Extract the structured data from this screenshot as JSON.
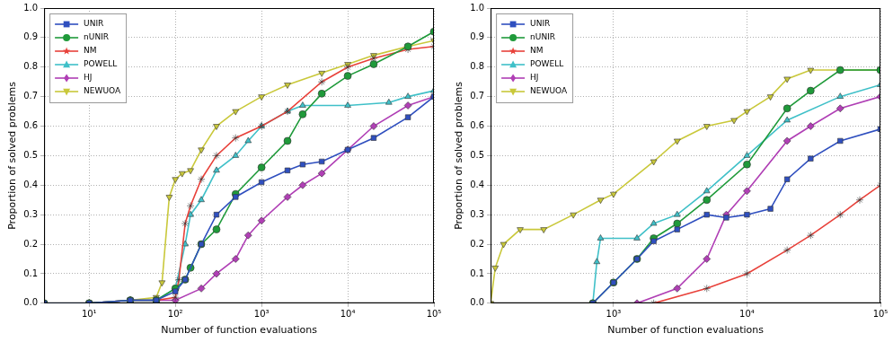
{
  "chart_data": [
    {
      "type": "line",
      "x_label": "Number of function evaluations",
      "y_label": "Proportion of solved problems",
      "log": "x",
      "grid": true,
      "legend": "upper left",
      "xlim": [
        3,
        100000
      ],
      "xticks": [
        {
          "value": 10,
          "label": "10¹"
        },
        {
          "value": 100,
          "label": "10²"
        },
        {
          "value": 1000,
          "label": "10³"
        },
        {
          "value": 10000,
          "label": "10⁴"
        },
        {
          "value": 100000,
          "label": "10⁵"
        }
      ],
      "ylim": [
        0,
        1
      ],
      "yticks": [
        {
          "value": 0,
          "label": "0.0"
        },
        0.1,
        0.2,
        0.3,
        0.4,
        0.5,
        0.6,
        0.7,
        0.8,
        0.9,
        {
          "value": 1,
          "label": "1.0"
        }
      ],
      "series": [
        {
          "name": "UNIR",
          "color": "#2f4fbf",
          "marker": "square",
          "x": [
            3,
            10,
            30,
            60,
            100,
            130,
            200,
            300,
            500,
            1000,
            2000,
            3000,
            5000,
            10000,
            20000,
            50000,
            100000
          ],
          "values": [
            0,
            0,
            0.01,
            0.01,
            0.04,
            0.08,
            0.2,
            0.3,
            0.36,
            0.41,
            0.45,
            0.47,
            0.48,
            0.52,
            0.56,
            0.63,
            0.7
          ]
        },
        {
          "name": "nUNIR",
          "color": "#1f9a3a",
          "marker": "circle",
          "x": [
            3,
            10,
            30,
            60,
            100,
            130,
            150,
            200,
            300,
            500,
            1000,
            2000,
            3000,
            5000,
            10000,
            20000,
            50000,
            100000
          ],
          "values": [
            0,
            0,
            0.01,
            0.01,
            0.05,
            0.08,
            0.12,
            0.2,
            0.25,
            0.37,
            0.46,
            0.55,
            0.64,
            0.71,
            0.77,
            0.81,
            0.87,
            0.92
          ]
        },
        {
          "name": "NM",
          "color": "#e8413a",
          "marker": "star",
          "x": [
            3,
            10,
            30,
            60,
            100,
            110,
            130,
            150,
            200,
            300,
            500,
            1000,
            2000,
            5000,
            10000,
            20000,
            50000,
            100000
          ],
          "values": [
            0,
            0,
            0.01,
            0.01,
            0.02,
            0.08,
            0.27,
            0.33,
            0.42,
            0.5,
            0.56,
            0.6,
            0.65,
            0.75,
            0.8,
            0.83,
            0.86,
            0.87
          ]
        },
        {
          "name": "POWELL",
          "color": "#3fc0c8",
          "marker": "triangle_up",
          "x": [
            3,
            10,
            30,
            60,
            100,
            130,
            150,
            200,
            300,
            500,
            700,
            1000,
            2000,
            3000,
            10000,
            30000,
            50000,
            100000
          ],
          "values": [
            0,
            0,
            0.01,
            0.01,
            0.05,
            0.2,
            0.3,
            0.35,
            0.45,
            0.5,
            0.55,
            0.6,
            0.65,
            0.67,
            0.67,
            0.68,
            0.7,
            0.72
          ]
        },
        {
          "name": "HJ",
          "color": "#b03fb5",
          "marker": "diamond",
          "x": [
            3,
            10,
            30,
            60,
            100,
            200,
            300,
            500,
            700,
            1000,
            2000,
            3000,
            5000,
            10000,
            20000,
            50000,
            100000
          ],
          "values": [
            0,
            0,
            0.01,
            0.01,
            0.01,
            0.05,
            0.1,
            0.15,
            0.23,
            0.28,
            0.36,
            0.4,
            0.44,
            0.52,
            0.6,
            0.67,
            0.7
          ]
        },
        {
          "name": "NEWUOA",
          "color": "#c9c83a",
          "marker": "triangle_down",
          "x": [
            3,
            10,
            30,
            60,
            70,
            85,
            100,
            120,
            150,
            200,
            300,
            500,
            1000,
            2000,
            5000,
            10000,
            20000,
            50000,
            100000
          ],
          "values": [
            0,
            0,
            0.01,
            0.02,
            0.07,
            0.36,
            0.42,
            0.44,
            0.45,
            0.52,
            0.6,
            0.65,
            0.7,
            0.74,
            0.78,
            0.81,
            0.84,
            0.87,
            0.89
          ]
        }
      ]
    },
    {
      "type": "line",
      "x_label": "Number of function evaluations",
      "y_label": "Proportion of solved problems",
      "log": "x",
      "grid": true,
      "legend": "upper left",
      "xlim": [
        120,
        100000
      ],
      "xticks": [
        {
          "value": 1000,
          "label": "10³"
        },
        {
          "value": 10000,
          "label": "10⁴"
        },
        {
          "value": 100000,
          "label": "10⁵"
        }
      ],
      "ylim": [
        0,
        1
      ],
      "yticks": [
        {
          "value": 0,
          "label": "0.0"
        },
        0.1,
        0.2,
        0.3,
        0.4,
        0.5,
        0.6,
        0.7,
        0.8,
        0.9,
        {
          "value": 1,
          "label": "1.0"
        }
      ],
      "series": [
        {
          "name": "UNIR",
          "color": "#2f4fbf",
          "marker": "square",
          "x": [
            700,
            1000,
            1500,
            2000,
            3000,
            5000,
            7000,
            10000,
            15000,
            20000,
            30000,
            50000,
            100000
          ],
          "values": [
            0,
            0.07,
            0.15,
            0.21,
            0.25,
            0.3,
            0.29,
            0.3,
            0.32,
            0.42,
            0.49,
            0.55,
            0.59
          ]
        },
        {
          "name": "nUNIR",
          "color": "#1f9a3a",
          "marker": "circle",
          "x": [
            700,
            1000,
            1500,
            2000,
            3000,
            5000,
            10000,
            20000,
            30000,
            50000,
            100000
          ],
          "values": [
            0,
            0.07,
            0.15,
            0.22,
            0.27,
            0.35,
            0.47,
            0.66,
            0.72,
            0.79,
            0.79
          ]
        },
        {
          "name": "NM",
          "color": "#e8413a",
          "marker": "star",
          "x": [
            2000,
            5000,
            10000,
            20000,
            30000,
            50000,
            70000,
            100000
          ],
          "values": [
            0,
            0.05,
            0.1,
            0.18,
            0.23,
            0.3,
            0.35,
            0.4
          ]
        },
        {
          "name": "POWELL",
          "color": "#3fc0c8",
          "marker": "triangle_up",
          "x": [
            700,
            750,
            800,
            1500,
            2000,
            3000,
            5000,
            10000,
            20000,
            50000,
            100000
          ],
          "values": [
            0,
            0.14,
            0.22,
            0.22,
            0.27,
            0.3,
            0.38,
            0.5,
            0.62,
            0.7,
            0.74
          ]
        },
        {
          "name": "HJ",
          "color": "#b03fb5",
          "marker": "diamond",
          "x": [
            1500,
            3000,
            5000,
            7000,
            10000,
            20000,
            30000,
            50000,
            100000
          ],
          "values": [
            0,
            0.05,
            0.15,
            0.3,
            0.38,
            0.55,
            0.6,
            0.66,
            0.7
          ]
        },
        {
          "name": "NEWUOA",
          "color": "#c9c83a",
          "marker": "triangle_down",
          "x": [
            120,
            130,
            150,
            200,
            300,
            500,
            800,
            1000,
            2000,
            3000,
            5000,
            8000,
            10000,
            15000,
            20000,
            30000,
            100000
          ],
          "values": [
            0,
            0.12,
            0.2,
            0.25,
            0.25,
            0.3,
            0.35,
            0.37,
            0.48,
            0.55,
            0.6,
            0.62,
            0.65,
            0.7,
            0.76,
            0.79,
            0.79
          ]
        }
      ]
    }
  ]
}
